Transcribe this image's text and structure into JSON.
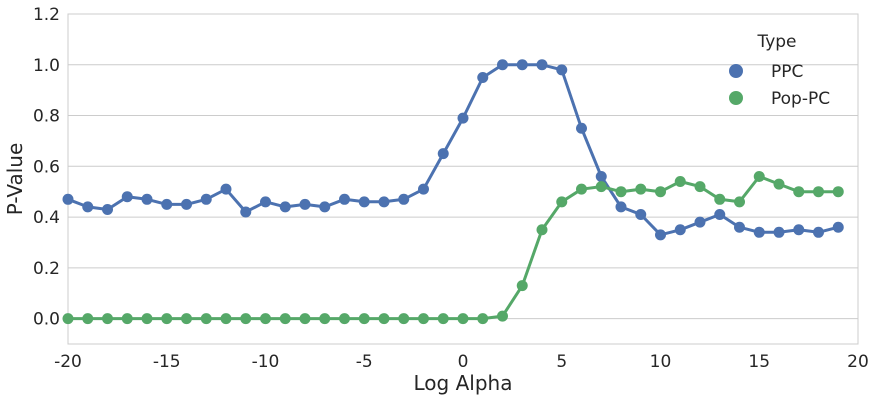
{
  "chart_data": {
    "type": "line",
    "xlabel": "Log Alpha",
    "ylabel": "P-Value",
    "xlim": [
      -20,
      20
    ],
    "ylim": [
      -0.1,
      1.2
    ],
    "x_ticks": [
      -20,
      -15,
      -10,
      -5,
      0,
      5,
      10,
      15,
      20
    ],
    "y_ticks": [
      0.0,
      0.2,
      0.4,
      0.6,
      0.8,
      1.0,
      1.2
    ],
    "x_tick_labels": [
      "-20",
      "-15",
      "-10",
      "-5",
      "0",
      "5",
      "10",
      "15",
      "20"
    ],
    "y_tick_labels": [
      "0.0",
      "0.2",
      "0.4",
      "0.6",
      "0.8",
      "1.0",
      "1.2"
    ],
    "grid": "horizontal",
    "legend": {
      "title": "Type",
      "placement": "top-right"
    },
    "x": [
      -20,
      -19,
      -18,
      -17,
      -16,
      -15,
      -14,
      -13,
      -12,
      -11,
      -10,
      -9,
      -8,
      -7,
      -6,
      -5,
      -4,
      -3,
      -2,
      -1,
      0,
      1,
      2,
      3,
      4,
      5,
      6,
      7,
      8,
      9,
      10,
      11,
      12,
      13,
      14,
      15,
      16,
      17,
      18,
      19
    ],
    "series": [
      {
        "name": "PPC",
        "color": "#4c72b0",
        "values": [
          0.47,
          0.44,
          0.43,
          0.48,
          0.47,
          0.45,
          0.45,
          0.47,
          0.51,
          0.42,
          0.46,
          0.44,
          0.45,
          0.44,
          0.47,
          0.46,
          0.46,
          0.47,
          0.51,
          0.65,
          0.79,
          0.95,
          1.0,
          1.0,
          1.0,
          0.98,
          0.75,
          0.56,
          0.44,
          0.41,
          0.33,
          0.35,
          0.38,
          0.41,
          0.36,
          0.34,
          0.34,
          0.35,
          0.34,
          0.36
        ]
      },
      {
        "name": "Pop-PC",
        "color": "#55a868",
        "values": [
          0.0,
          0.0,
          0.0,
          0.0,
          0.0,
          0.0,
          0.0,
          0.0,
          0.0,
          0.0,
          0.0,
          0.0,
          0.0,
          0.0,
          0.0,
          0.0,
          0.0,
          0.0,
          0.0,
          0.0,
          0.0,
          0.0,
          0.01,
          0.13,
          0.35,
          0.46,
          0.51,
          0.52,
          0.5,
          0.51,
          0.5,
          0.54,
          0.52,
          0.47,
          0.46,
          0.56,
          0.53,
          0.5,
          0.5,
          0.5
        ]
      }
    ]
  }
}
